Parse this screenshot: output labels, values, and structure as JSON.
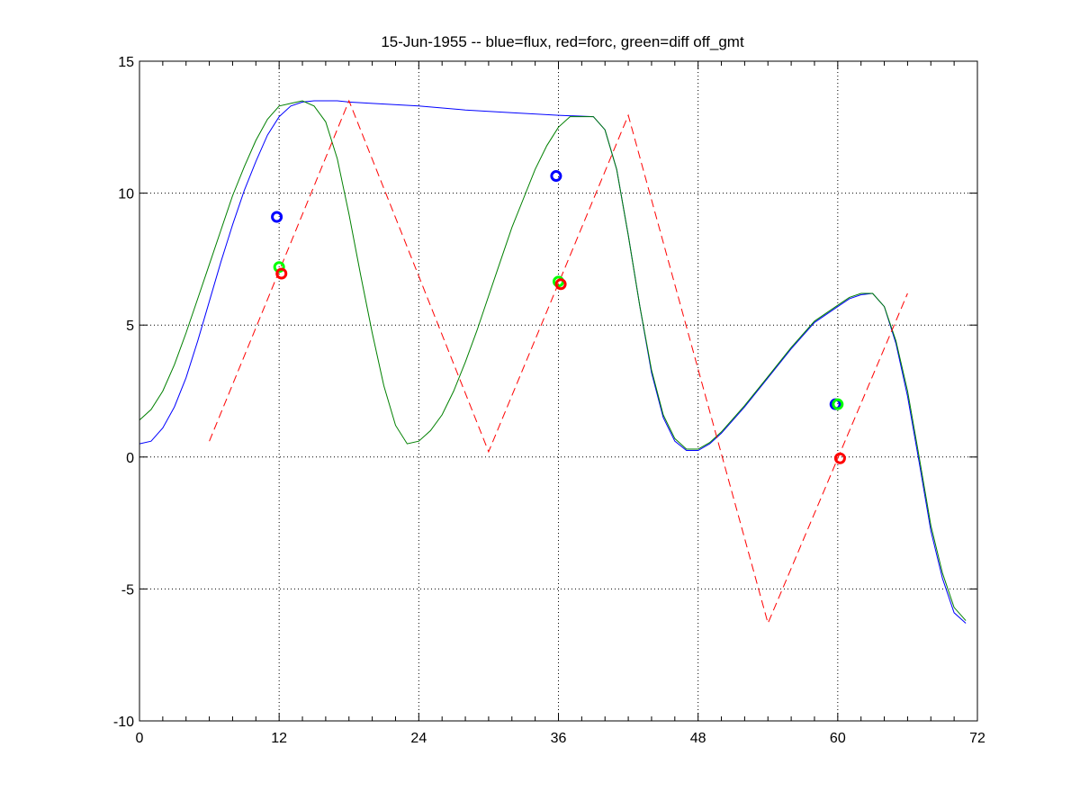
{
  "chart_data": {
    "type": "line",
    "title": "15-Jun-1955 -- blue=flux, red=forc, green=diff off_gmt",
    "xlabel": "",
    "ylabel": "",
    "xlim": [
      0,
      72
    ],
    "ylim": [
      -10,
      15
    ],
    "xticks": [
      0,
      12,
      24,
      36,
      48,
      60,
      72
    ],
    "yticks": [
      -10,
      -5,
      0,
      5,
      10,
      15
    ],
    "xtick_labels": [
      "0",
      "12",
      "24",
      "36",
      "48",
      "60",
      "72"
    ],
    "ytick_labels": [
      "-10",
      "-5",
      "0",
      "5",
      "10",
      "15"
    ],
    "grid": true,
    "grid_x": [
      12,
      24,
      36,
      48,
      60
    ],
    "grid_y": [
      -5,
      0,
      5,
      10
    ],
    "series": [
      {
        "color": "#0000ff",
        "style": "solid",
        "x": [
          0,
          1,
          2,
          3,
          4,
          5,
          6,
          7,
          8,
          9,
          10,
          11,
          12,
          13,
          14,
          15,
          16,
          17,
          18,
          20,
          24,
          28,
          32,
          36,
          39,
          40,
          41,
          42,
          43,
          44,
          45,
          46,
          47,
          48,
          49,
          50,
          52,
          54,
          56,
          58,
          60,
          61,
          62,
          63,
          64,
          65,
          66,
          67,
          68,
          69,
          70,
          71
        ],
        "y": [
          0.5,
          0.6,
          1.1,
          1.9,
          3.0,
          4.4,
          5.9,
          7.4,
          8.8,
          10.1,
          11.2,
          12.2,
          12.9,
          13.3,
          13.45,
          13.5,
          13.5,
          13.5,
          13.45,
          13.4,
          13.3,
          13.15,
          13.05,
          12.95,
          12.9,
          12.4,
          10.9,
          8.4,
          5.7,
          3.2,
          1.5,
          0.6,
          0.25,
          0.25,
          0.5,
          0.9,
          1.9,
          3.0,
          4.1,
          5.1,
          5.7,
          6.0,
          6.15,
          6.2,
          5.7,
          4.3,
          2.3,
          -0.2,
          -2.8,
          -4.6,
          -5.9,
          -6.3
        ]
      },
      {
        "color": "#008000",
        "style": "solid",
        "x": [
          0,
          1,
          2,
          3,
          4,
          5,
          6,
          7,
          8,
          9,
          10,
          11,
          12,
          13,
          14,
          15,
          16,
          17,
          18,
          19,
          20,
          21,
          22,
          23,
          24,
          25,
          26,
          27,
          28,
          29,
          30,
          31,
          32,
          33,
          34,
          35,
          36,
          37,
          38,
          39,
          40,
          41,
          42,
          43,
          44,
          45,
          46,
          47,
          48,
          49,
          50,
          52,
          54,
          56,
          58,
          60,
          61,
          62,
          63,
          64,
          65,
          66,
          67,
          68,
          69,
          70,
          71
        ],
        "y": [
          1.4,
          1.8,
          2.5,
          3.5,
          4.7,
          6.0,
          7.3,
          8.6,
          9.9,
          11.0,
          12.0,
          12.8,
          13.3,
          13.4,
          13.5,
          13.3,
          12.7,
          11.3,
          9.2,
          6.9,
          4.7,
          2.7,
          1.2,
          0.5,
          0.6,
          1.0,
          1.6,
          2.5,
          3.6,
          4.8,
          6.1,
          7.4,
          8.7,
          9.8,
          10.9,
          11.8,
          12.5,
          12.9,
          12.9,
          12.9,
          12.4,
          10.9,
          8.4,
          5.7,
          3.3,
          1.6,
          0.7,
          0.3,
          0.3,
          0.55,
          0.95,
          1.95,
          3.05,
          4.15,
          5.15,
          5.75,
          6.05,
          6.2,
          6.2,
          5.7,
          4.4,
          2.5,
          0.0,
          -2.6,
          -4.4,
          -5.7,
          -6.2
        ]
      },
      {
        "color": "#ff0000",
        "style": "dashed",
        "x": [
          6,
          18,
          30,
          42,
          54,
          66
        ],
        "y": [
          0.6,
          13.5,
          0.2,
          12.95,
          -6.3,
          6.2
        ]
      }
    ],
    "markers": [
      {
        "color": "#0000ff",
        "x": 11.8,
        "y": 9.1
      },
      {
        "color": "#00ff00",
        "x": 12.0,
        "y": 7.2
      },
      {
        "color": "#ff0000",
        "x": 12.2,
        "y": 6.95
      },
      {
        "color": "#0000ff",
        "x": 35.8,
        "y": 10.65
      },
      {
        "color": "#00ff00",
        "x": 36.0,
        "y": 6.65
      },
      {
        "color": "#ff0000",
        "x": 36.2,
        "y": 6.55
      },
      {
        "color": "#0000ff",
        "x": 59.8,
        "y": 2.0
      },
      {
        "color": "#00ff00",
        "x": 60.0,
        "y": 2.0
      },
      {
        "color": "#ff0000",
        "x": 60.2,
        "y": -0.05
      }
    ]
  }
}
